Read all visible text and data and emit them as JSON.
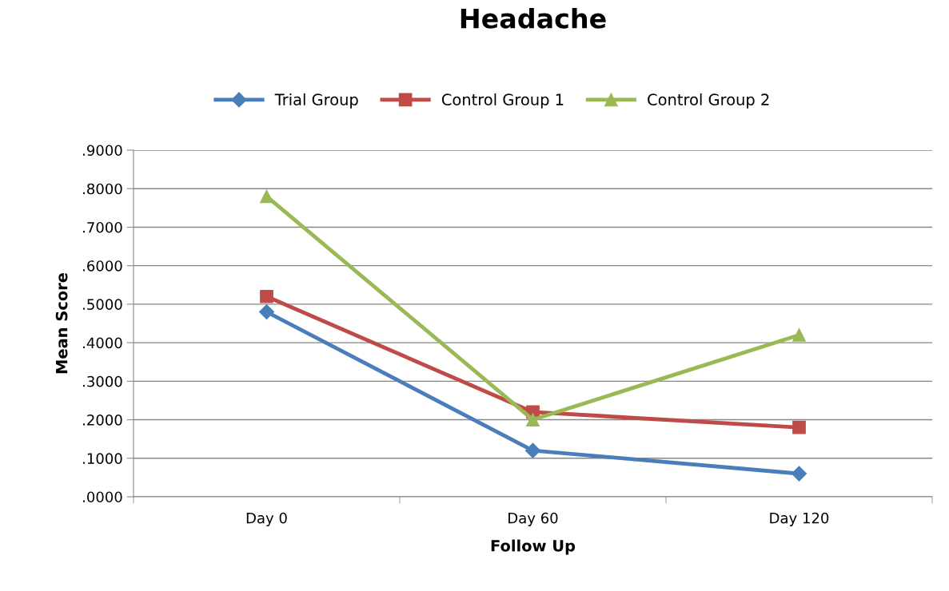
{
  "chart_data": {
    "type": "line",
    "title": "Headache",
    "xlabel": "Follow Up",
    "ylabel": "Mean Score",
    "categories": [
      "Day 0",
      "Day 60",
      "Day 120"
    ],
    "series": [
      {
        "name": "Trial Group",
        "color": "#4a7ebb",
        "marker": "diamond",
        "values": [
          0.48,
          0.12,
          0.06
        ]
      },
      {
        "name": "Control Group 1",
        "color": "#be4b48",
        "marker": "square",
        "values": [
          0.52,
          0.22,
          0.18
        ]
      },
      {
        "name": "Control Group 2",
        "color": "#98b954",
        "marker": "triangle",
        "values": [
          0.78,
          0.2,
          0.42
        ]
      }
    ],
    "ylim": [
      0,
      0.9
    ],
    "yticks": [
      {
        "value": 0,
        "label": ".0000"
      },
      {
        "value": 0.1,
        "label": ".1000"
      },
      {
        "value": 0.2,
        "label": ".2000"
      },
      {
        "value": 0.3,
        "label": ".3000"
      },
      {
        "value": 0.4,
        "label": ".4000"
      },
      {
        "value": 0.5,
        "label": ".5000"
      },
      {
        "value": 0.6,
        "label": ".6000"
      },
      {
        "value": 0.7,
        "label": ".7000"
      },
      {
        "value": 0.8,
        "label": ".8000"
      },
      {
        "value": 0.9,
        "label": ".9000"
      }
    ],
    "grid": "y",
    "legend": "top",
    "line_style": "solid"
  }
}
